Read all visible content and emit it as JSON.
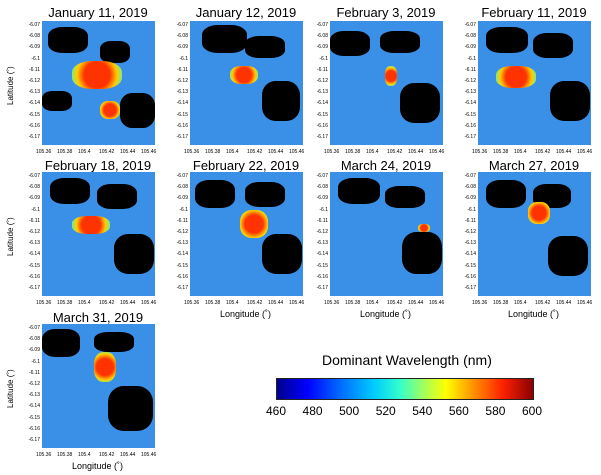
{
  "chart_data": {
    "type": "heatmap",
    "panels": [
      {
        "title": "January 11, 2019"
      },
      {
        "title": "January 12, 2019"
      },
      {
        "title": "February 3, 2019"
      },
      {
        "title": "February 11, 2019"
      },
      {
        "title": "February 18, 2019"
      },
      {
        "title": "February 22, 2019"
      },
      {
        "title": "March 24, 2019"
      },
      {
        "title": "March 27, 2019"
      },
      {
        "title": "March 31, 2019"
      }
    ],
    "xticks": [
      "105.36",
      "105.38",
      "105.4",
      "105.42",
      "105.44",
      "105.46"
    ],
    "yticks": [
      "-6.07",
      "-6.08",
      "-6.09",
      "-6.1",
      "-6.11",
      "-6.12",
      "-6.13",
      "-6.14",
      "-6.15",
      "-6.16",
      "-6.17"
    ],
    "xlabel": "Longitude (˚)",
    "ylabel": "Latitude (˚)",
    "colorbar": {
      "title": "Dominant Wavelength (nm)",
      "ticks": [
        "460",
        "480",
        "500",
        "520",
        "540",
        "560",
        "580",
        "600"
      ],
      "range": [
        460,
        600
      ],
      "colors": [
        "#00008f",
        "#0000ff",
        "#00ccff",
        "#ffff00",
        "#ff2200",
        "#8b0000"
      ]
    },
    "background_color": "#3a8fe6",
    "land_color": "#000000",
    "hotspot_color": "#ff3300"
  }
}
